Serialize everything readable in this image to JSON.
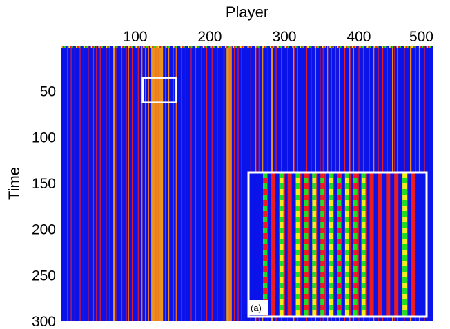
{
  "chart_data": {
    "type": "heatmap",
    "title": "",
    "xlabel": "Player",
    "ylabel": "Time",
    "x_axis_position": "top",
    "xlim": [
      1,
      500
    ],
    "ylim": [
      0,
      300
    ],
    "y_inverted": true,
    "x_ticks": [
      100,
      200,
      300,
      400,
      500
    ],
    "y_ticks": [
      50,
      100,
      150,
      200,
      250,
      300
    ],
    "grid": false,
    "legend": "none",
    "colors": {
      "background_state": "#0a14ea",
      "red_state": "#ee1c1c",
      "yellow_state": "#f2ee1a",
      "green_state": "#22dd22",
      "highlight_box": "#ffffff"
    },
    "highlight_region": {
      "x_range": [
        110,
        155
      ],
      "y_range": [
        35,
        62
      ]
    },
    "red_columns": [
      9,
      14,
      19,
      26,
      31,
      37,
      44,
      48,
      53,
      61,
      66,
      74,
      82,
      88,
      96,
      104,
      162,
      168,
      175,
      181,
      189,
      196,
      203,
      210,
      233,
      238,
      255,
      266,
      278,
      289,
      296,
      318,
      330,
      336,
      348,
      352,
      369,
      381,
      400,
      406,
      414,
      426,
      432,
      438,
      448,
      461,
      476,
      488
    ],
    "yellow_columns": [
      71,
      72,
      91,
      109,
      114,
      118,
      122,
      123,
      124,
      125,
      126,
      127,
      128,
      129,
      130,
      131,
      132,
      133,
      134,
      135,
      136,
      137,
      141,
      145,
      151,
      155,
      219,
      223,
      224,
      225,
      226,
      227,
      228,
      229,
      243,
      262,
      271,
      283,
      284,
      305,
      312,
      313,
      342,
      358,
      363,
      374,
      388,
      393,
      420,
      445,
      452,
      469,
      470,
      481
    ],
    "inset": {
      "label": "(a)",
      "magnified_region": "highlight_region",
      "zoom_columns": [
        {
          "type": "redgreen"
        },
        {
          "type": "red"
        },
        {
          "type": "yellowgreen"
        },
        {
          "type": "red"
        },
        {
          "type": "yellowgreen"
        },
        {
          "type": "redgreen"
        },
        {
          "type": "yellowgreen"
        },
        {
          "type": "redgreen"
        },
        {
          "type": "yellowgreen"
        },
        {
          "type": "redgreen"
        },
        {
          "type": "yellowgreen"
        },
        {
          "type": "redgreen"
        },
        {
          "type": "yellowgreen"
        },
        {
          "type": "red"
        },
        {
          "type": "red"
        },
        {
          "type": "red"
        },
        {
          "type": "red"
        },
        {
          "type": "yellowgreen"
        },
        {
          "type": "red"
        }
      ]
    }
  }
}
